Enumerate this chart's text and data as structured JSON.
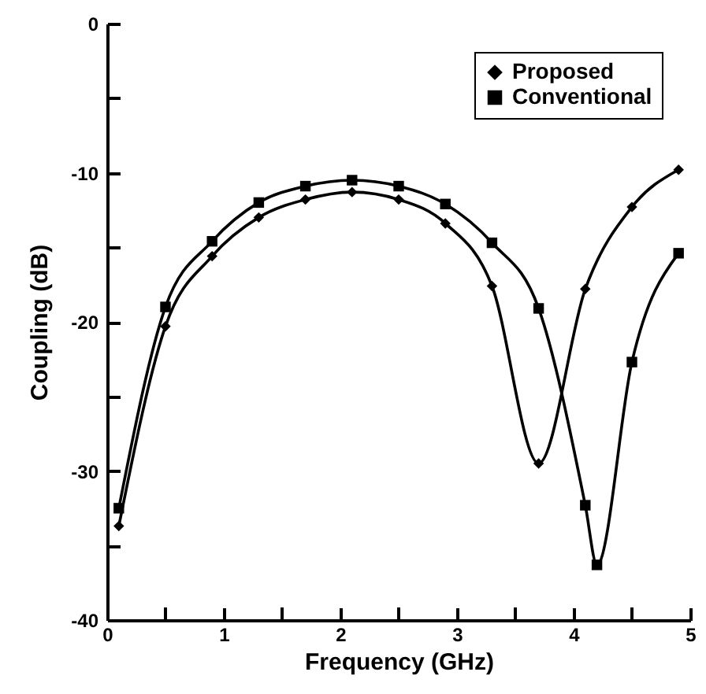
{
  "chart_data": {
    "type": "line",
    "xlabel": "Frequency (GHz)",
    "ylabel": "Coupling (dB)",
    "xlim": [
      0,
      5
    ],
    "ylim": [
      -40,
      0
    ],
    "xticks": [
      0,
      {
        "value": 0.5,
        "label": null
      },
      1,
      {
        "value": 1.5,
        "label": null
      },
      2,
      {
        "value": 2.5,
        "label": null
      },
      3,
      {
        "value": 3.5,
        "label": null
      },
      4,
      {
        "value": 4.5,
        "label": null
      },
      5
    ],
    "yticks": [
      -40,
      {
        "value": -35,
        "label": null
      },
      -30,
      {
        "value": -25,
        "label": null
      },
      -20,
      {
        "value": -15,
        "label": null
      },
      -10,
      {
        "value": -5,
        "label": null
      },
      0
    ],
    "grid": false,
    "legend": "top right",
    "line_style": "solid",
    "series": [
      {
        "name": "Proposed",
        "color": "#000000",
        "marker": "diamond",
        "x": [
          0.1,
          0.5,
          0.9,
          1.3,
          1.7,
          2.1,
          2.5,
          2.9,
          3.3,
          3.7,
          4.1,
          4.5,
          4.9
        ],
        "values": [
          -33.7,
          -20.3,
          -15.6,
          -13.0,
          -11.8,
          -11.3,
          -11.8,
          -13.4,
          -17.6,
          -29.5,
          -17.8,
          -12.3,
          -9.8
        ]
      },
      {
        "name": "Conventional",
        "color": "#000000",
        "marker": "square",
        "x": [
          0.1,
          0.5,
          0.9,
          1.3,
          1.7,
          2.1,
          2.5,
          2.9,
          3.3,
          3.7,
          4.1,
          4.2,
          4.5,
          4.9
        ],
        "values": [
          -32.5,
          -19.0,
          -14.6,
          -12.0,
          -10.9,
          -10.5,
          -10.9,
          -12.1,
          -14.7,
          -19.1,
          -32.3,
          -36.3,
          -22.7,
          -15.4
        ]
      }
    ]
  }
}
